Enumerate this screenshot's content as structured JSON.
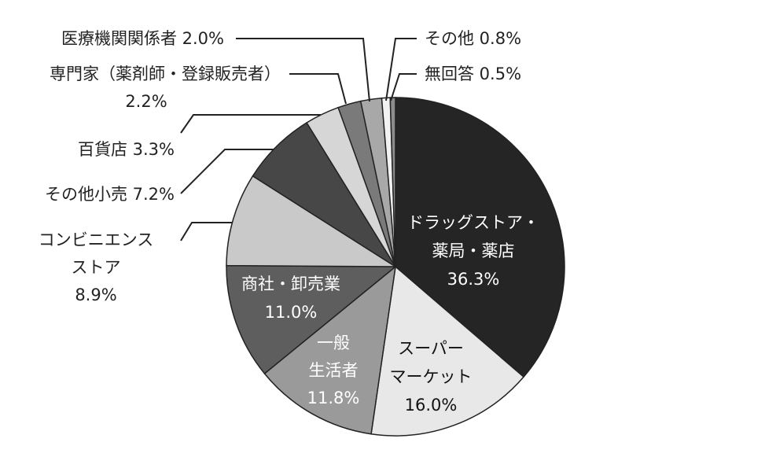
{
  "chart_data": {
    "type": "pie",
    "title": "",
    "start": "12 o'clock, clockwise",
    "slices": [
      {
        "label_lines": [
          "ドラッグストア・",
          "薬局・薬店"
        ],
        "value": 36.3,
        "value_text": "36.3%",
        "color": "#252525",
        "label_position": "inside"
      },
      {
        "label_lines": [
          "スーパー",
          "マーケット"
        ],
        "value": 16.0,
        "value_text": "16.0%",
        "color": "#e8e8e8",
        "label_position": "inside"
      },
      {
        "label_lines": [
          "一般",
          "生活者"
        ],
        "value": 11.8,
        "value_text": "11.8%",
        "color": "#9a9a9a",
        "label_position": "inside"
      },
      {
        "label_lines": [
          "商社・卸売業"
        ],
        "value": 11.0,
        "value_text": "11.0%",
        "color": "#5e5e5e",
        "label_position": "inside"
      },
      {
        "label_lines": [
          "コンビニエンス",
          "ストア"
        ],
        "value": 8.9,
        "value_text": "8.9%",
        "color": "#c9c9c9",
        "label_position": "outside"
      },
      {
        "label_lines": [
          "その他小売"
        ],
        "value": 7.2,
        "value_text": "7.2%",
        "color": "#474747",
        "label_position": "outside"
      },
      {
        "label_lines": [
          "百貨店"
        ],
        "value": 3.3,
        "value_text": "3.3%",
        "color": "#d6d6d6",
        "label_position": "outside"
      },
      {
        "label_lines": [
          "専門家（薬剤師・登録販売者）"
        ],
        "value": 2.2,
        "value_text": "2.2%",
        "color": "#7a7a7a",
        "label_position": "outside"
      },
      {
        "label_lines": [
          "医療機関関係者"
        ],
        "value": 2.0,
        "value_text": "2.0%",
        "color": "#a8a8a8",
        "label_position": "outside"
      },
      {
        "label_lines": [
          "その他"
        ],
        "value": 0.8,
        "value_text": "0.8%",
        "color": "#f2f2f2",
        "label_position": "outside"
      },
      {
        "label_lines": [
          "無回答"
        ],
        "value": 0.5,
        "value_text": "0.5%",
        "color": "#8c8c8c",
        "label_position": "outside"
      }
    ]
  }
}
